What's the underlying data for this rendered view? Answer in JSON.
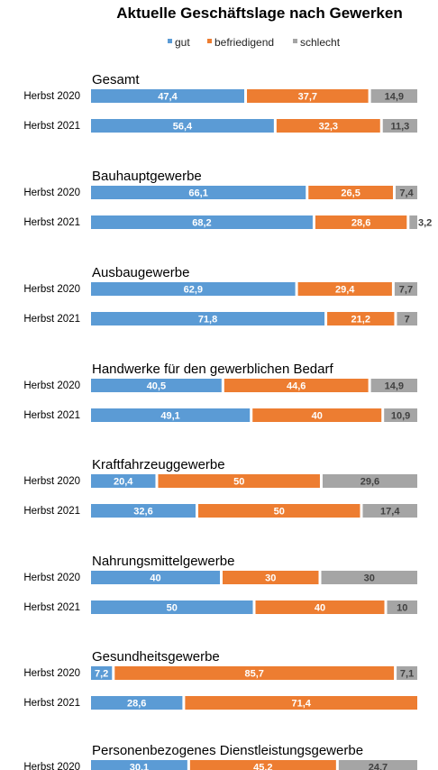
{
  "chart_data": {
    "type": "bar",
    "orientation": "horizontal",
    "stacked": "percent",
    "title": "Aktuelle Geschäftslage nach Gewerken",
    "legend": {
      "placement": "top",
      "entries": [
        "gut",
        "befriedigend",
        "schlecht"
      ]
    },
    "colors": {
      "gut": "#5B9BD5",
      "befriedigend": "#ED7D31",
      "schlecht": "#A5A5A5"
    },
    "xlim": [
      0,
      100
    ],
    "grid": false,
    "groups": [
      {
        "name": "Gesamt",
        "rows": [
          {
            "label": "Herbst 2020",
            "values": [
              47.4,
              37.7,
              14.9
            ],
            "labels": [
              "47,4",
              "37,7",
              "14,9"
            ]
          },
          {
            "label": "Herbst 2021",
            "values": [
              56.4,
              32.3,
              11.3
            ],
            "labels": [
              "56,4",
              "32,3",
              "11,3"
            ]
          }
        ]
      },
      {
        "name": "Bauhauptgewerbe",
        "rows": [
          {
            "label": "Herbst 2020",
            "values": [
              66.1,
              26.5,
              7.4
            ],
            "labels": [
              "66,1",
              "26,5",
              "7,4"
            ]
          },
          {
            "label": "Herbst 2021",
            "values": [
              68.2,
              28.6,
              3.2
            ],
            "labels": [
              "68,2",
              "28,6",
              "3,2"
            ]
          }
        ]
      },
      {
        "name": "Ausbaugewerbe",
        "rows": [
          {
            "label": "Herbst 2020",
            "values": [
              62.9,
              29.4,
              7.7
            ],
            "labels": [
              "62,9",
              "29,4",
              "7,7"
            ]
          },
          {
            "label": "Herbst 2021",
            "values": [
              71.8,
              21.2,
              7
            ],
            "labels": [
              "71,8",
              "21,2",
              "7"
            ]
          }
        ]
      },
      {
        "name": "Handwerke für den gewerblichen Bedarf",
        "rows": [
          {
            "label": "Herbst 2020",
            "values": [
              40.5,
              44.6,
              14.9
            ],
            "labels": [
              "40,5",
              "44,6",
              "14,9"
            ]
          },
          {
            "label": "Herbst 2021",
            "values": [
              49.1,
              40,
              10.9
            ],
            "labels": [
              "49,1",
              "40",
              "10,9"
            ]
          }
        ]
      },
      {
        "name": "Kraftfahrzeuggewerbe",
        "rows": [
          {
            "label": "Herbst 2020",
            "values": [
              20.4,
              50,
              29.6
            ],
            "labels": [
              "20,4",
              "50",
              "29,6"
            ]
          },
          {
            "label": "Herbst 2021",
            "values": [
              32.6,
              50,
              17.4
            ],
            "labels": [
              "32,6",
              "50",
              "17,4"
            ]
          }
        ]
      },
      {
        "name": "Nahrungsmittelgewerbe",
        "rows": [
          {
            "label": "Herbst 2020",
            "values": [
              40,
              30,
              30
            ],
            "labels": [
              "40",
              "30",
              "30"
            ]
          },
          {
            "label": "Herbst 2021",
            "values": [
              50,
              40,
              10
            ],
            "labels": [
              "50",
              "40",
              "10"
            ]
          }
        ]
      },
      {
        "name": "Gesundheitsgewerbe",
        "rows": [
          {
            "label": "Herbst 2020",
            "values": [
              7.2,
              85.7,
              7.1
            ],
            "labels": [
              "7,2",
              "85,7",
              "7,1"
            ]
          },
          {
            "label": "Herbst 2021",
            "values": [
              28.6,
              71.4,
              0
            ],
            "labels": [
              "28,6",
              "71,4",
              ""
            ]
          }
        ]
      },
      {
        "name": "Personenbezogenes Dienstleistungsgewerbe",
        "rows": [
          {
            "label": "Herbst 2020",
            "values": [
              30.1,
              45.2,
              24.7
            ],
            "labels": [
              "30,1",
              "45,2",
              "24,7"
            ]
          }
        ]
      }
    ]
  }
}
